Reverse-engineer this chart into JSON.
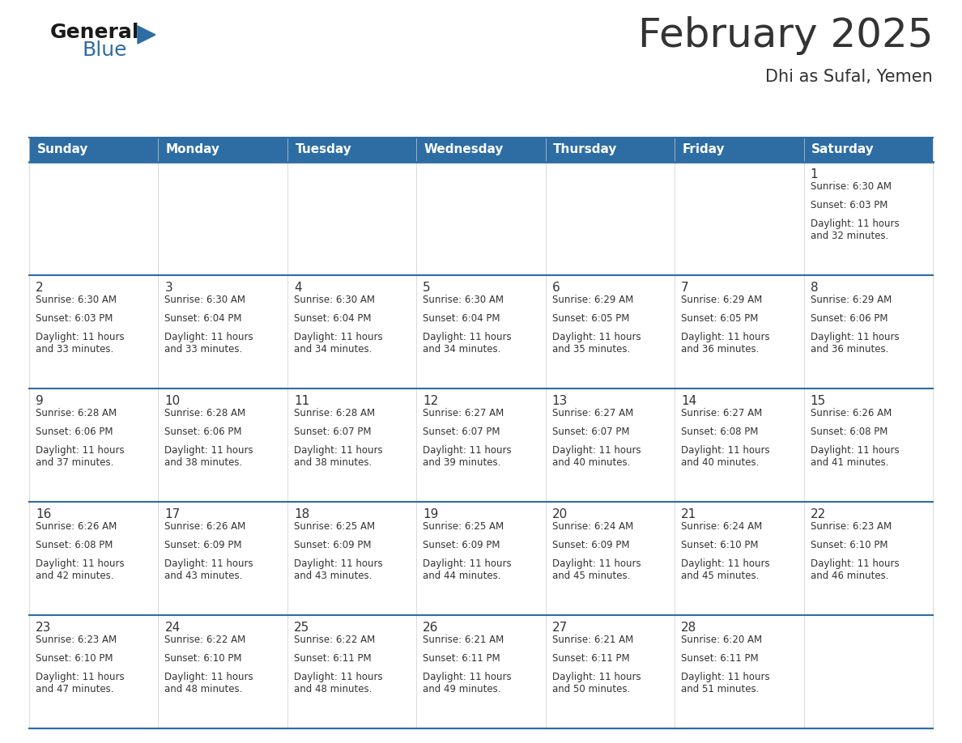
{
  "title": "February 2025",
  "subtitle": "Dhi as Sufal, Yemen",
  "header_bg_color": "#2e6da4",
  "header_text_color": "#ffffff",
  "border_color": "#2e6da4",
  "text_color": "#333333",
  "days_of_week": [
    "Sunday",
    "Monday",
    "Tuesday",
    "Wednesday",
    "Thursday",
    "Friday",
    "Saturday"
  ],
  "logo_black": "#1a1a1a",
  "logo_blue": "#2e6da4",
  "title_fontsize": 36,
  "subtitle_fontsize": 15,
  "header_fontsize": 11,
  "day_num_fontsize": 11,
  "info_fontsize": 8.5,
  "weeks": [
    [
      {
        "day": null,
        "sunrise": null,
        "sunset": null,
        "daylight": null
      },
      {
        "day": null,
        "sunrise": null,
        "sunset": null,
        "daylight": null
      },
      {
        "day": null,
        "sunrise": null,
        "sunset": null,
        "daylight": null
      },
      {
        "day": null,
        "sunrise": null,
        "sunset": null,
        "daylight": null
      },
      {
        "day": null,
        "sunrise": null,
        "sunset": null,
        "daylight": null
      },
      {
        "day": null,
        "sunrise": null,
        "sunset": null,
        "daylight": null
      },
      {
        "day": 1,
        "sunrise": "6:30 AM",
        "sunset": "6:03 PM",
        "daylight": "11 hours\nand 32 minutes."
      }
    ],
    [
      {
        "day": 2,
        "sunrise": "6:30 AM",
        "sunset": "6:03 PM",
        "daylight": "11 hours\nand 33 minutes."
      },
      {
        "day": 3,
        "sunrise": "6:30 AM",
        "sunset": "6:04 PM",
        "daylight": "11 hours\nand 33 minutes."
      },
      {
        "day": 4,
        "sunrise": "6:30 AM",
        "sunset": "6:04 PM",
        "daylight": "11 hours\nand 34 minutes."
      },
      {
        "day": 5,
        "sunrise": "6:30 AM",
        "sunset": "6:04 PM",
        "daylight": "11 hours\nand 34 minutes."
      },
      {
        "day": 6,
        "sunrise": "6:29 AM",
        "sunset": "6:05 PM",
        "daylight": "11 hours\nand 35 minutes."
      },
      {
        "day": 7,
        "sunrise": "6:29 AM",
        "sunset": "6:05 PM",
        "daylight": "11 hours\nand 36 minutes."
      },
      {
        "day": 8,
        "sunrise": "6:29 AM",
        "sunset": "6:06 PM",
        "daylight": "11 hours\nand 36 minutes."
      }
    ],
    [
      {
        "day": 9,
        "sunrise": "6:28 AM",
        "sunset": "6:06 PM",
        "daylight": "11 hours\nand 37 minutes."
      },
      {
        "day": 10,
        "sunrise": "6:28 AM",
        "sunset": "6:06 PM",
        "daylight": "11 hours\nand 38 minutes."
      },
      {
        "day": 11,
        "sunrise": "6:28 AM",
        "sunset": "6:07 PM",
        "daylight": "11 hours\nand 38 minutes."
      },
      {
        "day": 12,
        "sunrise": "6:27 AM",
        "sunset": "6:07 PM",
        "daylight": "11 hours\nand 39 minutes."
      },
      {
        "day": 13,
        "sunrise": "6:27 AM",
        "sunset": "6:07 PM",
        "daylight": "11 hours\nand 40 minutes."
      },
      {
        "day": 14,
        "sunrise": "6:27 AM",
        "sunset": "6:08 PM",
        "daylight": "11 hours\nand 40 minutes."
      },
      {
        "day": 15,
        "sunrise": "6:26 AM",
        "sunset": "6:08 PM",
        "daylight": "11 hours\nand 41 minutes."
      }
    ],
    [
      {
        "day": 16,
        "sunrise": "6:26 AM",
        "sunset": "6:08 PM",
        "daylight": "11 hours\nand 42 minutes."
      },
      {
        "day": 17,
        "sunrise": "6:26 AM",
        "sunset": "6:09 PM",
        "daylight": "11 hours\nand 43 minutes."
      },
      {
        "day": 18,
        "sunrise": "6:25 AM",
        "sunset": "6:09 PM",
        "daylight": "11 hours\nand 43 minutes."
      },
      {
        "day": 19,
        "sunrise": "6:25 AM",
        "sunset": "6:09 PM",
        "daylight": "11 hours\nand 44 minutes."
      },
      {
        "day": 20,
        "sunrise": "6:24 AM",
        "sunset": "6:09 PM",
        "daylight": "11 hours\nand 45 minutes."
      },
      {
        "day": 21,
        "sunrise": "6:24 AM",
        "sunset": "6:10 PM",
        "daylight": "11 hours\nand 45 minutes."
      },
      {
        "day": 22,
        "sunrise": "6:23 AM",
        "sunset": "6:10 PM",
        "daylight": "11 hours\nand 46 minutes."
      }
    ],
    [
      {
        "day": 23,
        "sunrise": "6:23 AM",
        "sunset": "6:10 PM",
        "daylight": "11 hours\nand 47 minutes."
      },
      {
        "day": 24,
        "sunrise": "6:22 AM",
        "sunset": "6:10 PM",
        "daylight": "11 hours\nand 48 minutes."
      },
      {
        "day": 25,
        "sunrise": "6:22 AM",
        "sunset": "6:11 PM",
        "daylight": "11 hours\nand 48 minutes."
      },
      {
        "day": 26,
        "sunrise": "6:21 AM",
        "sunset": "6:11 PM",
        "daylight": "11 hours\nand 49 minutes."
      },
      {
        "day": 27,
        "sunrise": "6:21 AM",
        "sunset": "6:11 PM",
        "daylight": "11 hours\nand 50 minutes."
      },
      {
        "day": 28,
        "sunrise": "6:20 AM",
        "sunset": "6:11 PM",
        "daylight": "11 hours\nand 51 minutes."
      },
      {
        "day": null,
        "sunrise": null,
        "sunset": null,
        "daylight": null
      }
    ]
  ]
}
